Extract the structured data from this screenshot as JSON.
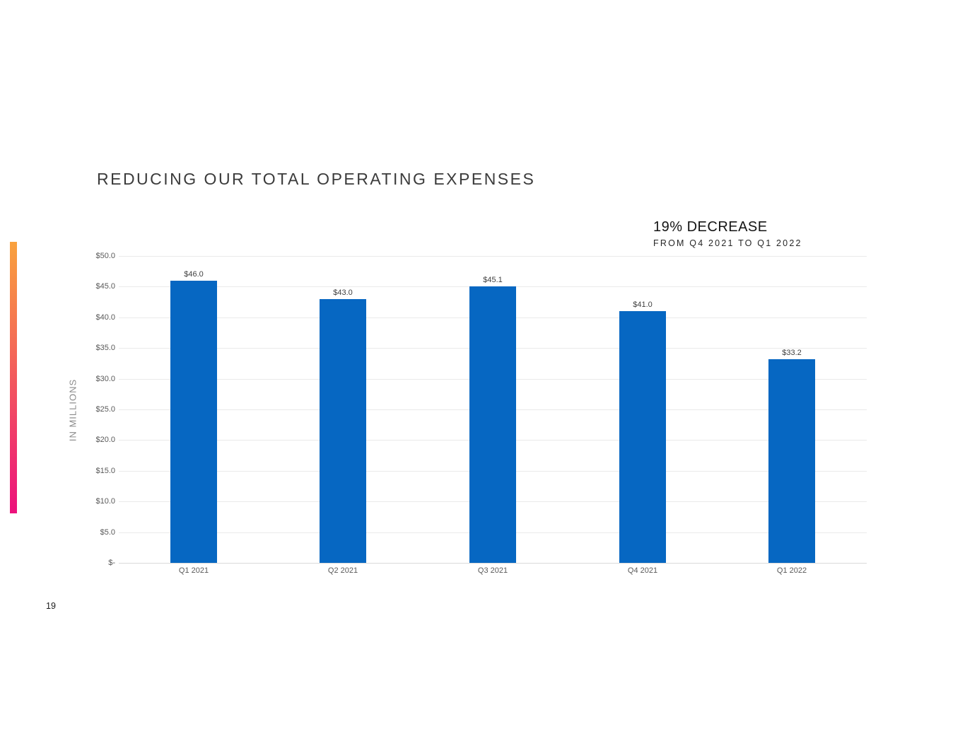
{
  "slide": {
    "title": "REDUCING OUR TOTAL OPERATING EXPENSES",
    "page_number": "19",
    "annotation": {
      "headline": "19% DECREASE",
      "subline": "FROM Q4 2021 TO Q1 2022"
    }
  },
  "colors": {
    "bar": "#0667c2",
    "accent_gradient_top": "#f9a23e",
    "accent_gradient_bottom": "#ec117c",
    "gridline": "#eaeaea",
    "axis_line": "#d9d9d9",
    "axis_text": "#595959",
    "title_text": "#3b3b3b"
  },
  "chart_data": {
    "type": "bar",
    "title": "",
    "categories": [
      "Q1 2021",
      "Q2 2021",
      "Q3 2021",
      "Q4 2021",
      "Q1 2022"
    ],
    "values": [
      46.0,
      43.0,
      45.1,
      41.0,
      33.2
    ],
    "data_labels": [
      "$46.0",
      "$43.0",
      "$45.1",
      "$41.0",
      "$33.2"
    ],
    "xlabel": "",
    "ylabel": "IN MILLIONS",
    "ylim": [
      0,
      50
    ],
    "ytick_step": 5,
    "ytick_labels": [
      "$-",
      "$5.0",
      "$10.0",
      "$15.0",
      "$20.0",
      "$25.0",
      "$30.0",
      "$35.0",
      "$40.0",
      "$45.0",
      "$50.0"
    ],
    "grid": true,
    "legend": false,
    "bar_color": "#0667c2"
  }
}
